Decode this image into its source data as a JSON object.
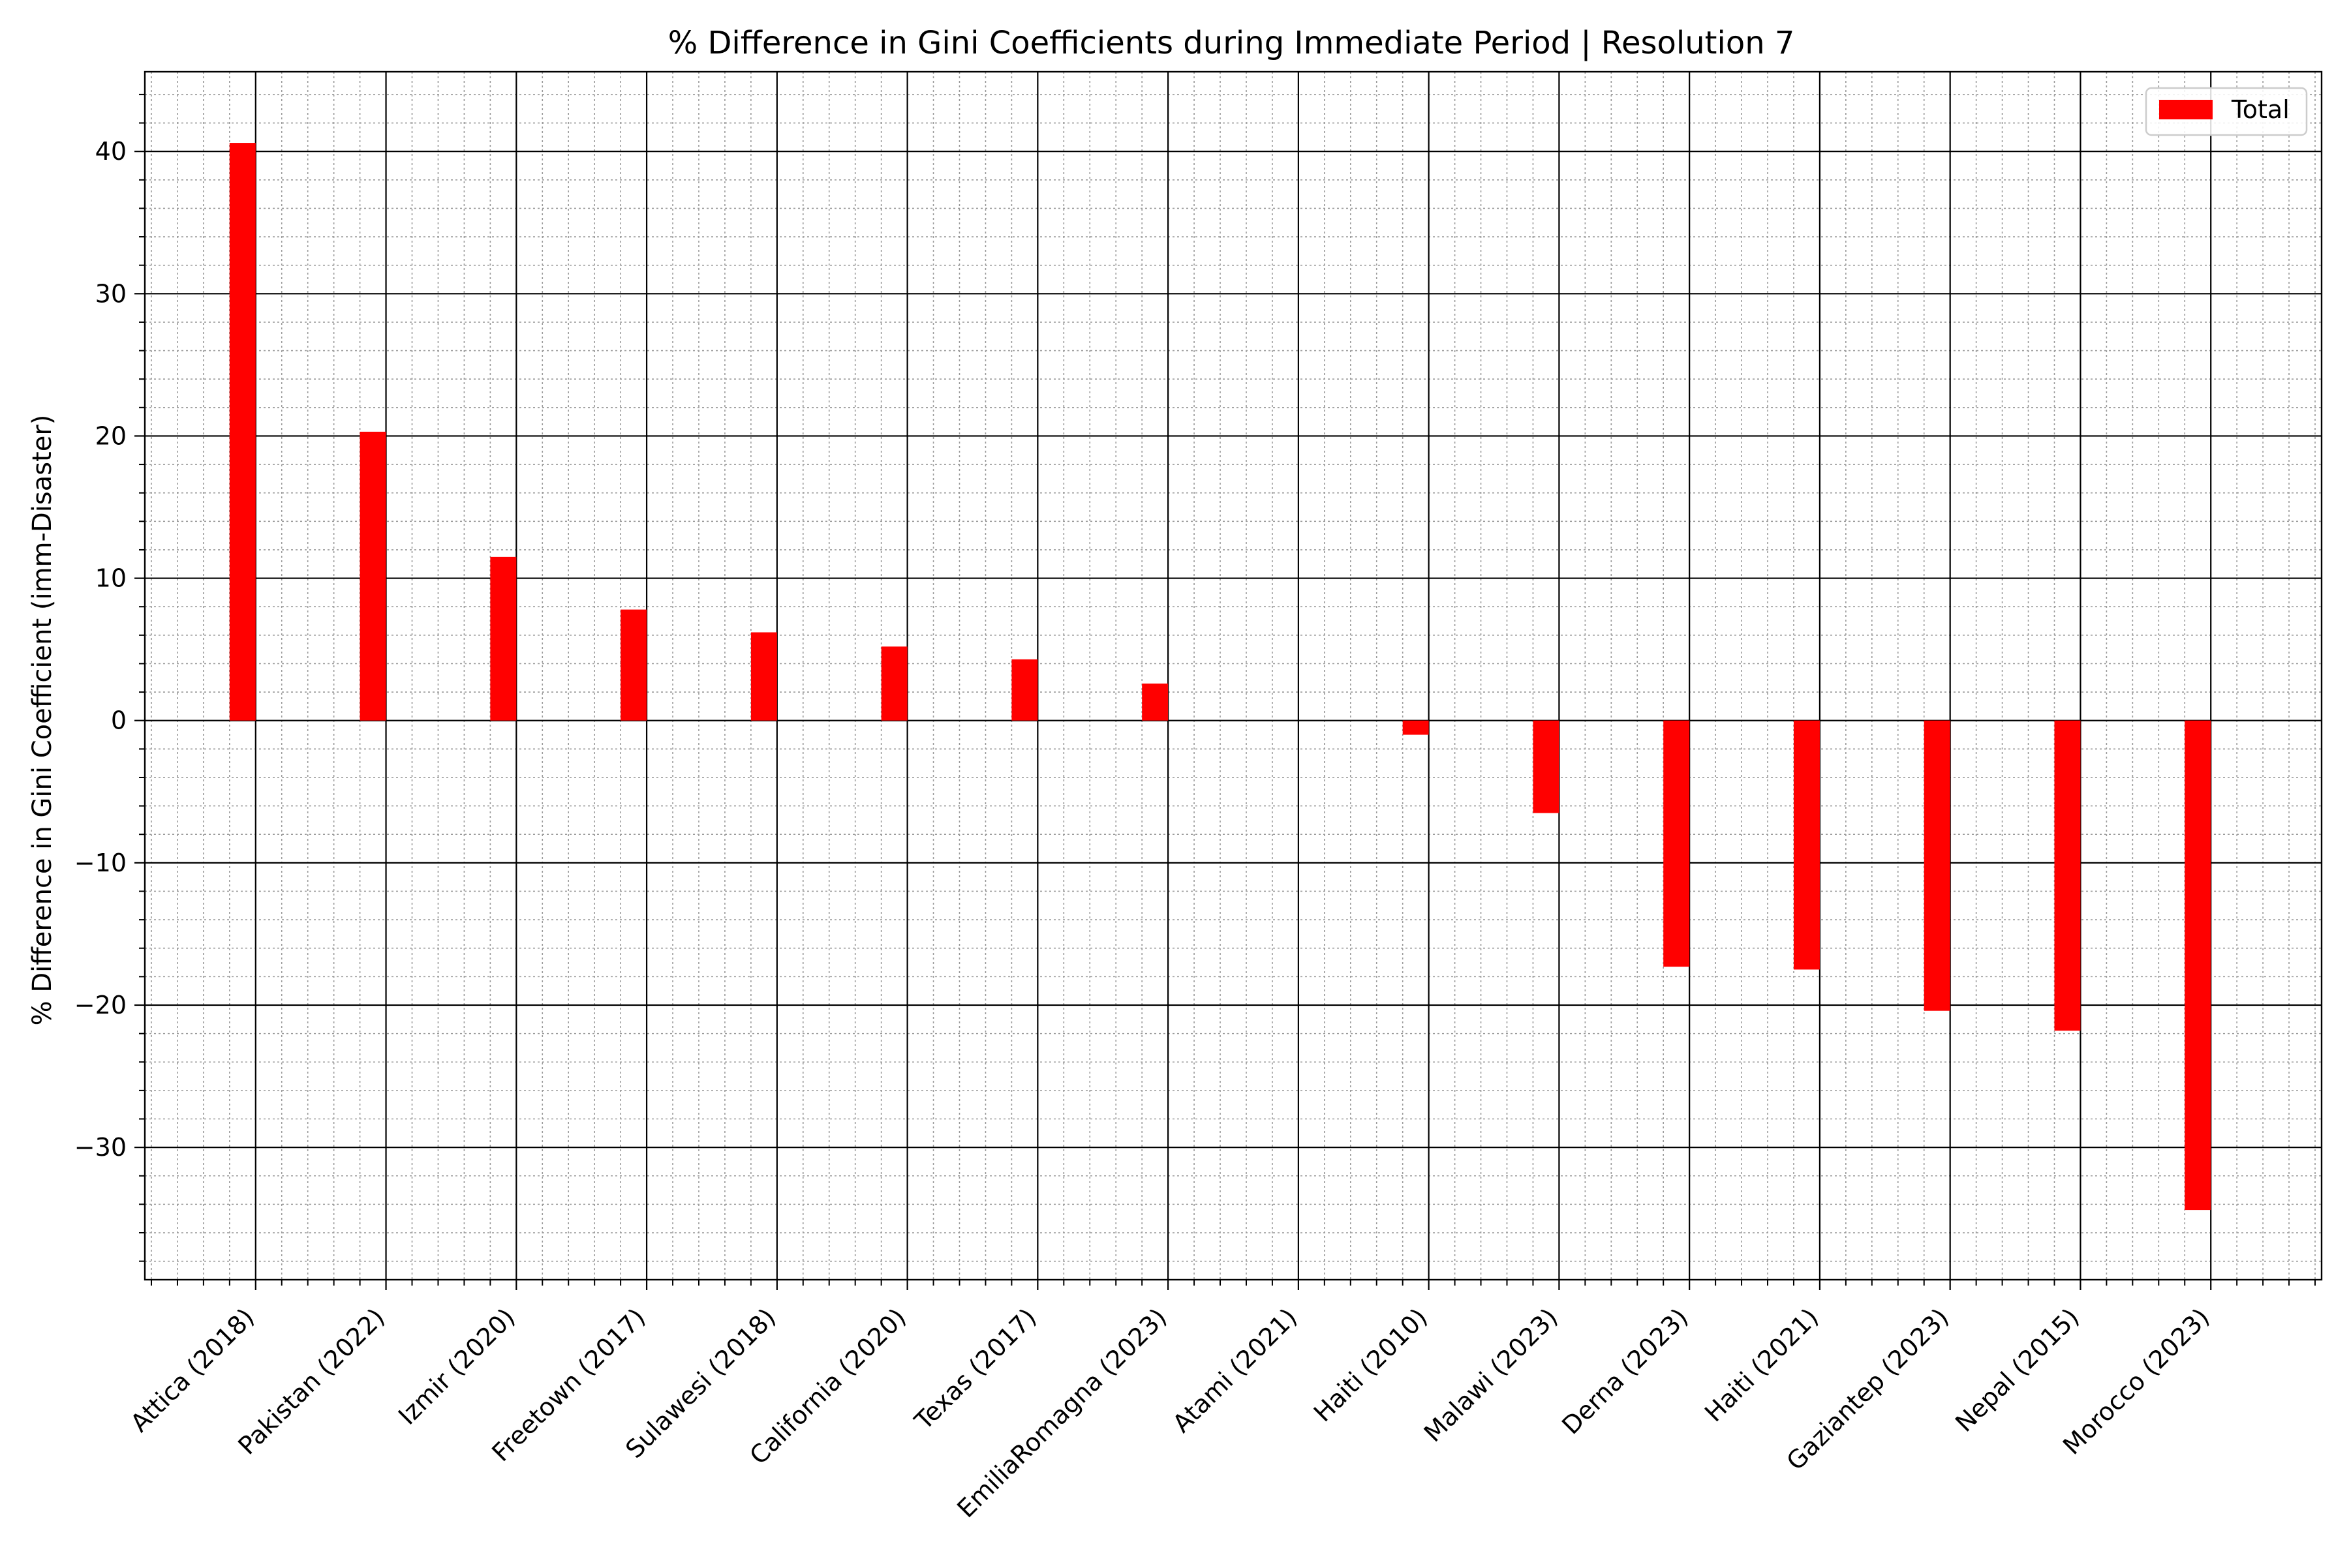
{
  "chart_data": {
    "type": "bar",
    "title": "% Difference in Gini Coefficients during Immediate Period | Resolution 7",
    "xlabel": "",
    "ylabel": "% Difference in Gini Coefficient (imm-Disaster)",
    "categories": [
      "Attica (2018)",
      "Pakistan (2022)",
      "Izmir (2020)",
      "Freetown (2017)",
      "Sulawesi (2018)",
      "California (2020)",
      "Texas (2017)",
      "EmiliaRomagna (2023)",
      "Atami (2021)",
      "Haiti (2010)",
      "Malawi (2023)",
      "Derna (2023)",
      "Haiti (2021)",
      "Gaziantep (2023)",
      "Nepal (2015)",
      "Morocco (2023)"
    ],
    "series": [
      {
        "name": "Total",
        "color": "#ff0000",
        "values": [
          40.6,
          20.3,
          11.5,
          7.8,
          6.2,
          5.2,
          4.3,
          2.6,
          0.0,
          -1.0,
          -6.5,
          -17.3,
          -17.5,
          -20.4,
          -21.8,
          -34.4
        ]
      }
    ],
    "ylim": [
      -39.3,
      45.6
    ],
    "yticks": [
      -30,
      -20,
      -10,
      0,
      10,
      20,
      30,
      40
    ],
    "ytick_labels": [
      "−30",
      "−20",
      "−10",
      "0",
      "10",
      "20",
      "30",
      "40"
    ],
    "xlim": [
      -0.85,
      15.85
    ],
    "grid": {
      "major": true,
      "minor": true
    },
    "legend": {
      "position": "upper right",
      "label": "Total"
    }
  }
}
